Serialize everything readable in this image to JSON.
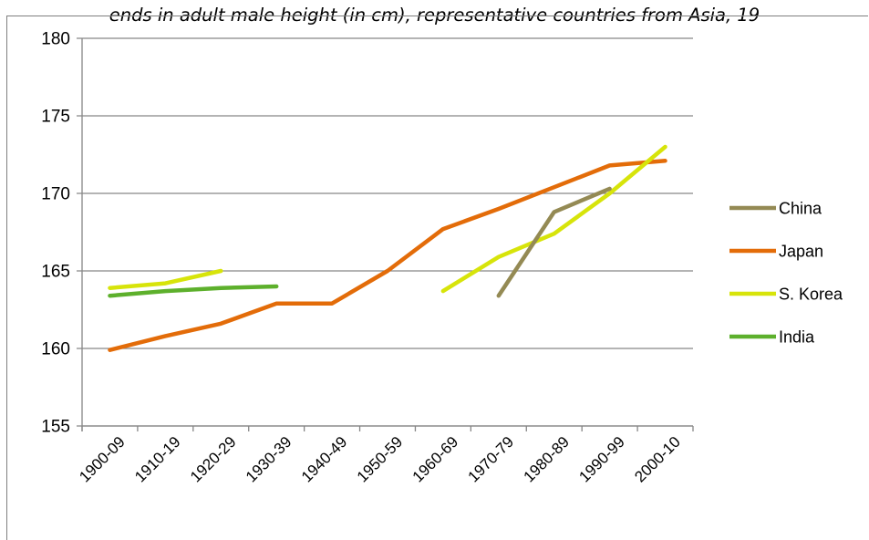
{
  "chart_data": {
    "type": "line",
    "title": "ends in adult male height (in cm), representative countries from Asia, 19",
    "xlabel": "",
    "ylabel": "",
    "categories": [
      "1900-09",
      "1910-19",
      "1920-29",
      "1930-39",
      "1940-49",
      "1950-59",
      "1960-69",
      "1970-79",
      "1980-89",
      "1990-99",
      "2000-10"
    ],
    "ylim": [
      155,
      180
    ],
    "yticks": [
      155,
      160,
      165,
      170,
      175,
      180
    ],
    "grid": "horizontal",
    "legend_position": "right",
    "series": [
      {
        "name": "China",
        "color": "#948A54",
        "values": [
          null,
          null,
          null,
          null,
          null,
          null,
          null,
          163.4,
          168.8,
          170.3,
          null
        ]
      },
      {
        "name": "Japan",
        "color": "#E36C09",
        "values": [
          159.9,
          160.8,
          161.6,
          162.9,
          162.9,
          165.0,
          167.7,
          169.0,
          170.4,
          171.8,
          172.1
        ]
      },
      {
        "name": "S. Korea",
        "color": "#D7E40A",
        "values": [
          163.9,
          164.2,
          165.0,
          null,
          null,
          null,
          163.7,
          165.9,
          167.4,
          170.0,
          173.0
        ]
      },
      {
        "name": "India",
        "color": "#5DB02C",
        "values": [
          163.4,
          163.7,
          163.9,
          164.0,
          null,
          null,
          null,
          null,
          null,
          null,
          null
        ]
      }
    ]
  }
}
